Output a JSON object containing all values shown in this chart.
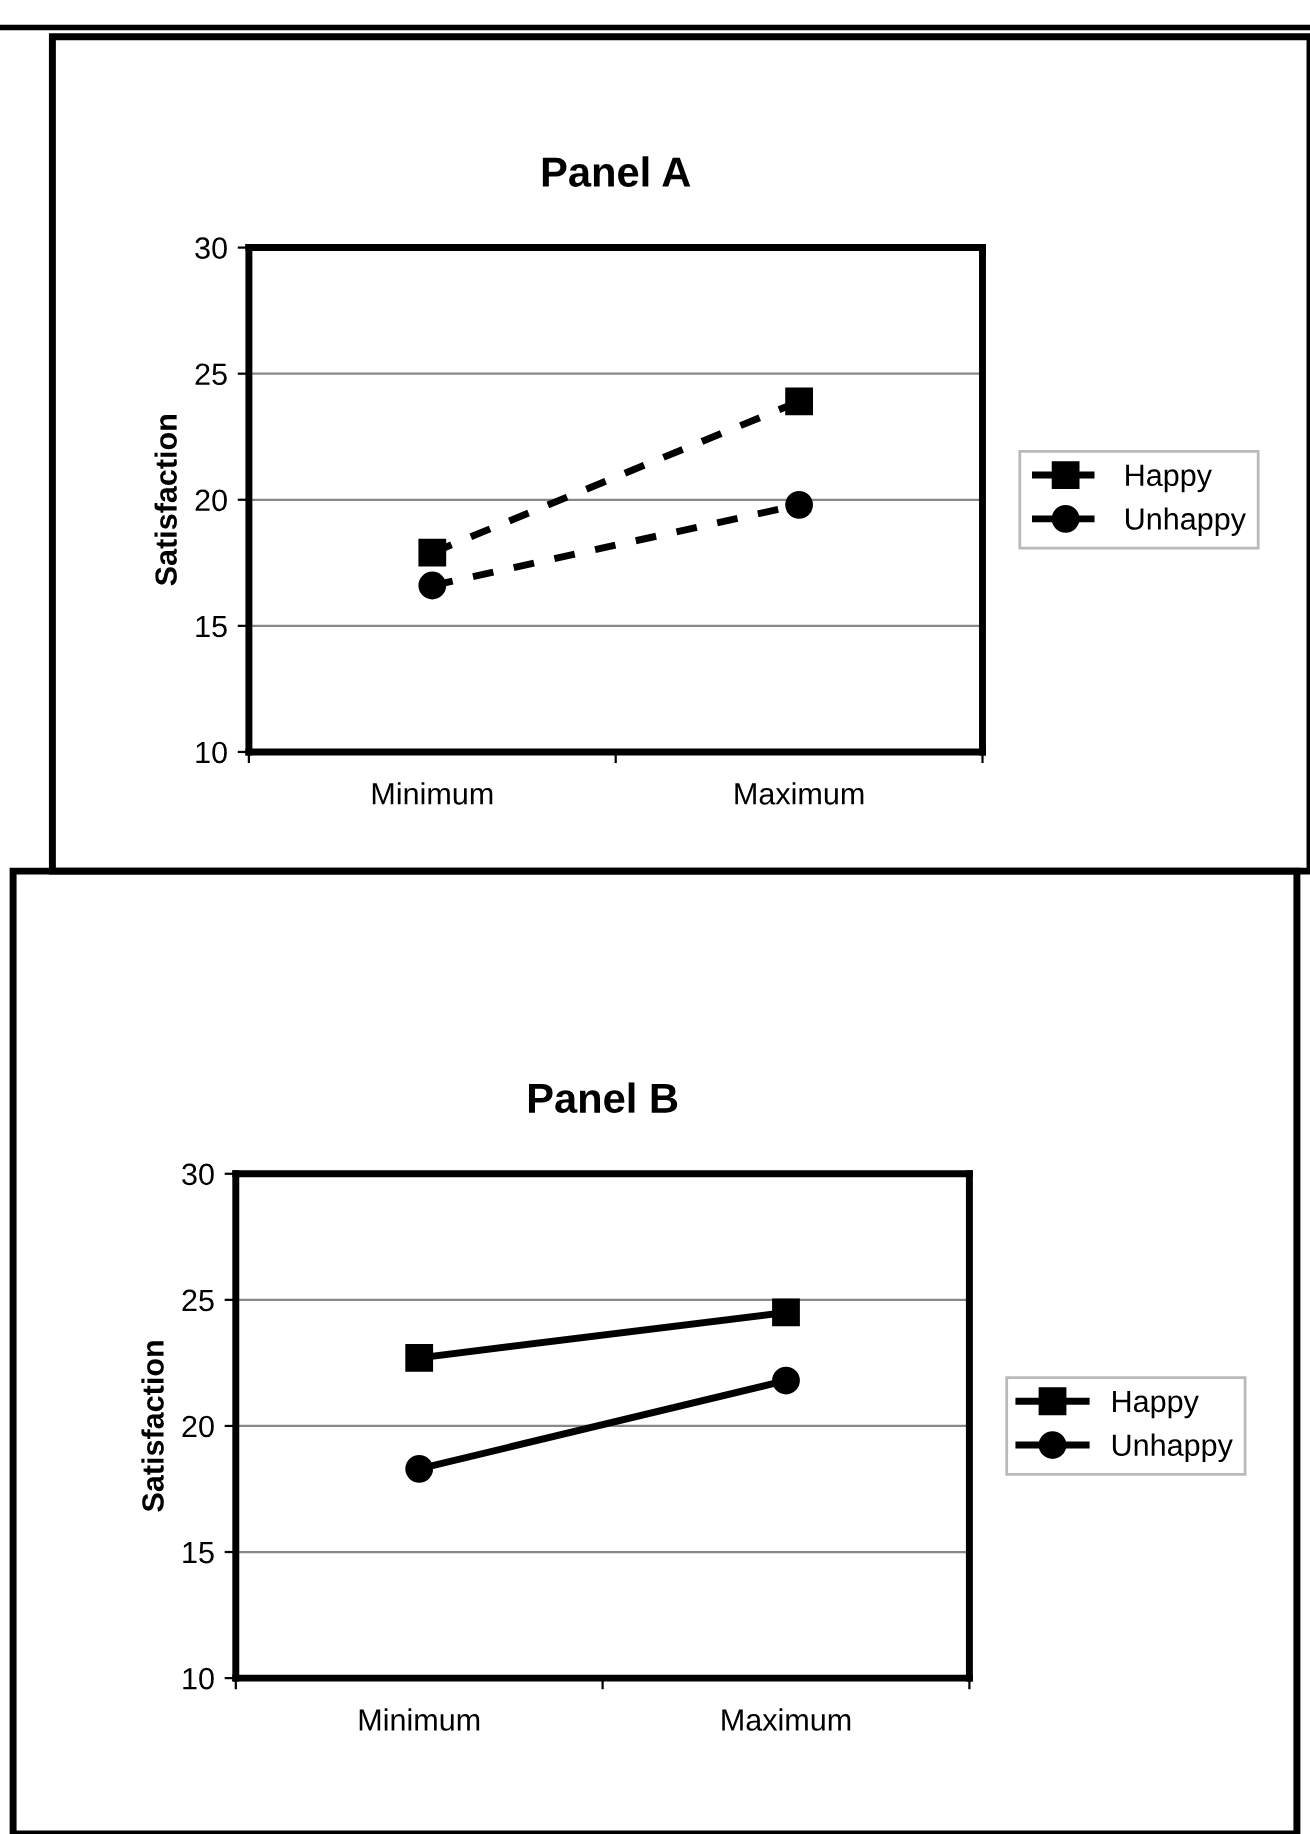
{
  "chart_data": [
    {
      "type": "line",
      "title": "Panel A",
      "ylabel": "Satisfaction",
      "categories": [
        "Minimum",
        "Maximum"
      ],
      "line_style": "dashed",
      "ylim": [
        10,
        30
      ],
      "yticks": [
        10,
        15,
        20,
        25,
        30
      ],
      "grid": "y",
      "legend": "right",
      "series": [
        {
          "name": "Happy",
          "color": "#000000",
          "marker": "square",
          "values": [
            17.9,
            23.9
          ]
        },
        {
          "name": "Unhappy",
          "color": "#000000",
          "marker": "circle",
          "values": [
            16.6,
            19.8
          ]
        }
      ]
    },
    {
      "type": "line",
      "title": "Panel B",
      "ylabel": "Satisfaction",
      "categories": [
        "Minimum",
        "Maximum"
      ],
      "line_style": "solid",
      "ylim": [
        10,
        30
      ],
      "yticks": [
        10,
        15,
        20,
        25,
        30
      ],
      "grid": "y",
      "legend": "right",
      "series": [
        {
          "name": "Happy",
          "color": "#000000",
          "marker": "square",
          "values": [
            22.7,
            24.5
          ]
        },
        {
          "name": "Unhappy",
          "color": "#000000",
          "marker": "circle",
          "values": [
            18.3,
            21.8
          ]
        }
      ]
    }
  ]
}
